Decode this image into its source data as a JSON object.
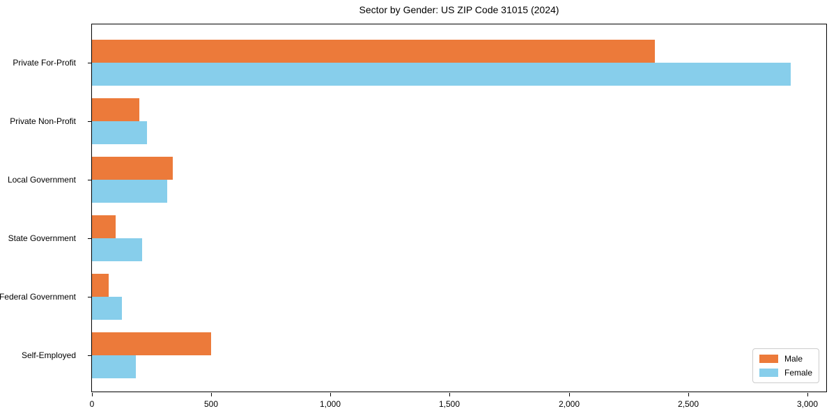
{
  "title": "Sector by Gender: US ZIP Code 31015 (2024)",
  "colors": {
    "male": "#ec7a3a",
    "female": "#87ceeb",
    "axis": "#000000",
    "legend_border": "#cccccc",
    "background": "#ffffff"
  },
  "legend": {
    "position": "lower right",
    "items": [
      {
        "label": "Male",
        "color": "#ec7a3a"
      },
      {
        "label": "Female",
        "color": "#87ceeb"
      }
    ]
  },
  "chart_data": {
    "type": "bar",
    "orientation": "horizontal",
    "title": "Sector by Gender: US ZIP Code 31015 (2024)",
    "categories": [
      "Private For-Profit",
      "Private Non-Profit",
      "Local Government",
      "State Government",
      "Federal Government",
      "Self-Employed"
    ],
    "series": [
      {
        "name": "Male",
        "color": "#ec7a3a",
        "values": [
          2360,
          200,
          340,
          100,
          70,
          500
        ]
      },
      {
        "name": "Female",
        "color": "#87ceeb",
        "values": [
          2930,
          230,
          315,
          210,
          125,
          185
        ]
      }
    ],
    "xlabel": "",
    "ylabel": "",
    "xlim": [
      0,
      3085
    ],
    "xticks": [
      0,
      500,
      1000,
      1500,
      2000,
      2500,
      3000
    ],
    "xtick_labels": [
      "0",
      "500",
      "1,000",
      "1,500",
      "2,000",
      "2,500",
      "3,000"
    ],
    "grid": false,
    "legend_position": "lower right"
  }
}
